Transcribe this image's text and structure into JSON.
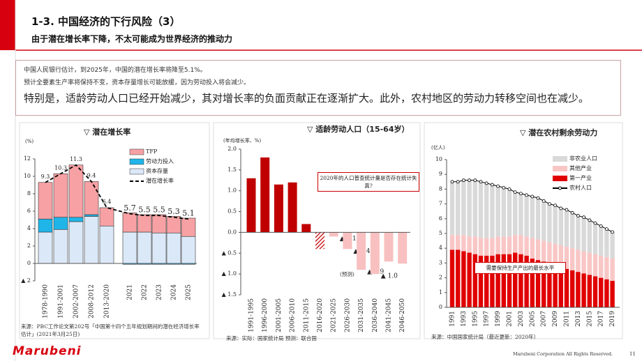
{
  "header": {
    "title": "1-3. 中国经济的下行风险（3）",
    "subtitle": "由于潜在增长率下降，不太可能成为世界经济的推动力"
  },
  "summary": {
    "lines": [
      "中国人民银行估计，到2025年，中国的潜在增长率将降至5.1%。",
      "预计全要素生产率将保持不变，资本存量增长可能放缓，因为劳动投入将会减少。",
      "特别是，适龄劳动人口已经开始减少，其对增长率的负面贡献正在逐渐扩大。此外，农村地区的劳动力转移空间也在减少。"
    ]
  },
  "chart_data": [
    {
      "type": "stacked_bar",
      "title": "▽ 潜在增长率",
      "y_label": "(%)",
      "categories": [
        "1978-1990",
        "1991-2001",
        "2002-2007",
        "2008-2012",
        "2013-2020",
        "2021",
        "2022",
        "2023",
        "2024",
        "2025"
      ],
      "series": [
        {
          "name": "TFP",
          "color": "#f7a1a4",
          "values": [
            4.2,
            5.0,
            6.0,
            3.8,
            2.1,
            2.2,
            2.0,
            2.1,
            1.9,
            2.1
          ]
        },
        {
          "name": "劳动力投入",
          "color": "#1fb5e8",
          "values": [
            1.5,
            1.4,
            0.5,
            0.2,
            0,
            -0.1,
            -0.1,
            -0.1,
            -0.1,
            -0.1
          ]
        },
        {
          "name": "资本存量",
          "color": "#dbe8f8",
          "values": [
            3.6,
            3.9,
            4.8,
            5.4,
            4.3,
            3.6,
            3.6,
            3.5,
            3.5,
            3.1
          ]
        },
        {
          "name": "潜在增长率",
          "type": "line",
          "dash": true,
          "color": "#000000",
          "values": [
            9.3,
            10.3,
            11.3,
            9.4,
            6.4,
            5.7,
            5.5,
            5.5,
            5.3,
            5.1
          ]
        }
      ],
      "ylim": [
        -2,
        12
      ],
      "yticks": [
        {
          "value": -2,
          "label": "▲ 2"
        },
        0,
        2,
        4,
        6,
        8,
        10,
        12
      ],
      "source": "来源：PBC工作论文第202号「中国第十四个五年规划期间的潜在经济增长率估计」(2021年3月25日)"
    },
    {
      "type": "bar",
      "title": "▽ 适龄劳动人口（15-64岁）",
      "y_label": "(年均增长率、%)",
      "categories": [
        "1991-1995",
        "1996-2000",
        "2001-2005",
        "2006-2010",
        "2011-2015",
        "2016-2020",
        "2021-2025",
        "2026-2030",
        "2031-2035",
        "2036-2040",
        "2041-2045",
        "2046-2050"
      ],
      "values": [
        1.3,
        1.8,
        1.15,
        1.2,
        0.2,
        -0.4,
        -0.1,
        -0.4,
        -0.9,
        -1.0,
        -0.7,
        -0.75
      ],
      "value_labels": [
        null,
        null,
        null,
        null,
        null,
        null,
        "▲ 0.1",
        "▲ 0.4",
        "▲ 0.9",
        "▲ 1.0",
        null,
        null
      ],
      "colors": [
        "#c00000",
        "#c00000",
        "#c00000",
        "#c00000",
        "#c00000",
        "#c00000",
        "#f8c0c0",
        "#f8c0c0",
        "#f8c0c0",
        "#f8c0c0",
        "#f8c0c0",
        "#f8c0c0"
      ],
      "patterns": [
        "solid",
        "solid",
        "solid",
        "solid",
        "solid",
        "hatch",
        "solid",
        "solid",
        "solid",
        "solid",
        "solid",
        "solid"
      ],
      "ylim": [
        -1.5,
        2.0
      ],
      "yticks": [
        {
          "value": -1.5,
          "label": "▲ 1.5"
        },
        {
          "value": -1.0,
          "label": "▲ 1.0"
        },
        {
          "value": -0.5,
          "label": "▲ 0.5"
        },
        {
          "value": 0,
          "label": "0.0"
        },
        0.5,
        {
          "value": 1.0,
          "label": "1.0"
        },
        1.5,
        {
          "value": 2.0,
          "label": "2.0"
        }
      ],
      "annotations": [
        "2020年的人口普查统计量是否存在统计失真?",
        "(预测)"
      ],
      "source": "来源：实际：国家统计局 预测：联合国"
    },
    {
      "type": "stacked_bar",
      "title": "▽ 潜在农村剩余劳动力",
      "y_label": "(亿人)",
      "categories": [
        "1991",
        null,
        "1993",
        null,
        "1995",
        null,
        "1997",
        null,
        "1999",
        null,
        "2001",
        null,
        "2003",
        null,
        "2005",
        null,
        "2007",
        null,
        "2009",
        null,
        "2011",
        null,
        "2013",
        null,
        "2015",
        null,
        "2017",
        null,
        "2019"
      ],
      "series": [
        {
          "name": "非农业人口",
          "color": "#d9d9d9",
          "values": [
            3.6,
            3.6,
            3.7,
            3.8,
            3.8,
            3.8,
            3.7,
            3.6,
            3.4,
            3.3,
            3.2,
            2.9,
            2.8,
            2.8,
            2.8,
            2.8,
            2.7,
            2.6,
            2.6,
            2.5,
            2.5,
            2.4,
            2.3,
            2.3,
            2.2,
            2.1,
            2.0,
            1.9,
            1.8
          ]
        },
        {
          "name": "其他产业",
          "color": "#f9c6c6",
          "values": [
            1.0,
            1.0,
            1.1,
            1.1,
            1.2,
            1.2,
            1.2,
            1.2,
            1.2,
            1.2,
            1.2,
            1.2,
            1.3,
            1.3,
            1.4,
            1.4,
            1.4,
            1.5,
            1.5,
            1.5,
            1.5,
            1.5,
            1.5,
            1.5,
            1.5,
            1.5,
            1.5,
            1.5,
            1.5
          ]
        },
        {
          "name": "第一产业",
          "color": "#e00000",
          "values": [
            3.9,
            3.9,
            3.8,
            3.7,
            3.6,
            3.5,
            3.5,
            3.5,
            3.6,
            3.6,
            3.6,
            3.7,
            3.6,
            3.5,
            3.3,
            3.2,
            3.1,
            2.9,
            2.8,
            2.7,
            2.6,
            2.5,
            2.4,
            2.3,
            2.2,
            2.1,
            2.0,
            1.9,
            1.8
          ]
        },
        {
          "name": "农村人口",
          "type": "line",
          "markers": true,
          "color": "#000000",
          "values": [
            8.5,
            8.5,
            8.6,
            8.6,
            8.6,
            8.5,
            8.4,
            8.3,
            8.2,
            8.1,
            8.0,
            7.8,
            7.7,
            7.6,
            7.5,
            7.4,
            7.2,
            7.0,
            6.9,
            6.7,
            6.6,
            6.4,
            6.2,
            6.1,
            5.9,
            5.7,
            5.5,
            5.3,
            5.1
          ]
        }
      ],
      "ylim": [
        0,
        10
      ],
      "yticks": [
        0,
        1,
        2,
        3,
        4,
        5,
        6,
        7,
        8,
        9,
        10
      ],
      "annotations": [
        "需要保持生产产出的最长水平"
      ],
      "source": "来源：中国国家统计局（最近更新：2020年）"
    }
  ],
  "footer": {
    "logo": "Marubeni",
    "copyright": "Marubeni Corporation All Rights Reserved.",
    "page": "11"
  }
}
